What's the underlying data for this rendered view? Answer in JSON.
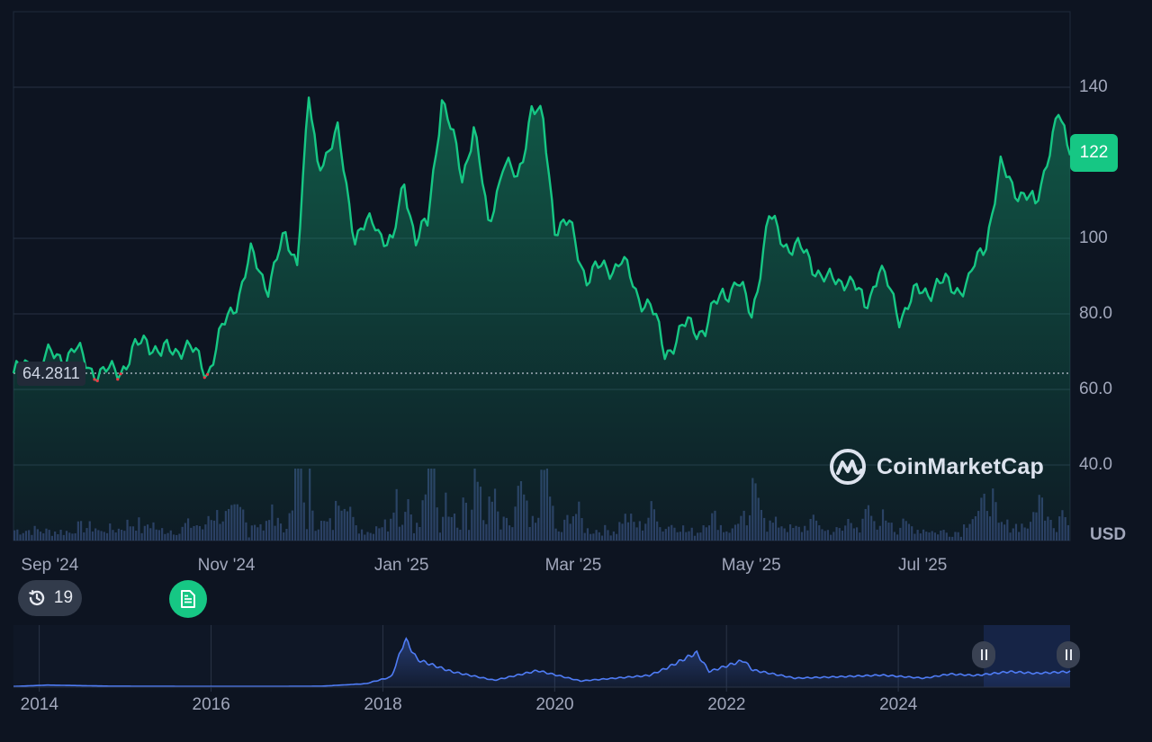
{
  "chart_data": [
    {
      "type": "area",
      "xlabel": "",
      "ylabel": "",
      "currency": "USD",
      "current_price": "122",
      "open_value": "64.2811",
      "ylim": [
        20,
        160
      ],
      "y_ticks": [
        "140",
        "100",
        "80.0",
        "60.0",
        "40.0"
      ],
      "x_ticks": [
        "Sep '24",
        "Nov '24",
        "Jan '25",
        "Mar '25",
        "May '25",
        "Jul '25"
      ],
      "x": [
        "2024-08-30",
        "2024-09-10",
        "2024-09-20",
        "2024-09-30",
        "2024-10-08",
        "2024-10-15",
        "2024-10-20",
        "2024-10-28",
        "2024-11-05",
        "2024-11-10",
        "2024-11-15",
        "2024-11-20",
        "2024-11-26",
        "2024-12-02",
        "2024-12-06",
        "2024-12-10",
        "2024-12-13",
        "2024-12-20",
        "2024-12-26",
        "2025-01-02",
        "2025-01-08",
        "2025-01-12",
        "2025-01-16",
        "2025-01-20",
        "2025-01-25",
        "2025-02-01",
        "2025-02-05",
        "2025-02-10",
        "2025-02-15",
        "2025-02-20",
        "2025-02-25",
        "2025-03-01",
        "2025-03-05",
        "2025-03-10",
        "2025-03-16",
        "2025-03-22",
        "2025-03-28",
        "2025-04-02",
        "2025-04-07",
        "2025-04-12",
        "2025-04-20",
        "2025-04-26",
        "2025-05-02",
        "2025-05-07",
        "2025-05-12",
        "2025-05-18",
        "2025-05-25",
        "2025-06-01",
        "2025-06-07",
        "2025-06-14",
        "2025-06-20",
        "2025-06-25",
        "2025-07-02",
        "2025-07-08",
        "2025-07-15",
        "2025-07-20",
        "2025-07-26",
        "2025-08-01",
        "2025-08-06",
        "2025-08-12",
        "2025-08-18",
        "2025-08-22",
        "2025-08-26",
        "2025-08-30"
      ],
      "y": [
        64.3,
        68,
        70,
        63.5,
        67,
        74,
        69,
        72,
        65,
        75,
        84,
        95,
        88,
        100,
        95,
        136,
        120,
        127,
        101,
        104,
        98,
        115,
        100,
        103,
        138,
        116,
        130,
        103,
        120,
        115,
        135,
        130,
        104,
        103,
        90,
        92,
        94,
        86,
        82,
        70,
        77,
        76,
        86,
        88,
        80,
        105,
        98,
        95,
        88,
        90,
        82,
        92,
        80,
        85,
        88,
        87,
        88,
        100,
        118,
        113,
        108,
        122,
        132,
        122
      ]
    },
    {
      "type": "area",
      "series_name": "",
      "x_ticks": [
        "2014",
        "2016",
        "2018",
        "2020",
        "2022",
        "2024"
      ],
      "x": [
        2013.4,
        2013.8,
        2014.5,
        2015.5,
        2016.5,
        2017.0,
        2017.5,
        2017.8,
        2017.96,
        2018.1,
        2018.5,
        2019.0,
        2019.5,
        2020.0,
        2020.3,
        2020.8,
        2021.0,
        2021.35,
        2021.5,
        2021.9,
        2022.0,
        2022.5,
        2023.0,
        2023.5,
        2024.0,
        2024.3,
        2024.6,
        2025.0,
        2025.3,
        2025.7
      ],
      "y": [
        2,
        6,
        3,
        2,
        2,
        3,
        10,
        30,
        140,
        80,
        45,
        20,
        48,
        18,
        24,
        34,
        55,
        100,
        45,
        78,
        50,
        26,
        30,
        35,
        26,
        38,
        34,
        45,
        40,
        45
      ],
      "ylim": [
        0,
        180
      ]
    }
  ],
  "overlay": {
    "brand_name": "CoinMarketCap",
    "events_count": "19",
    "colors": {
      "up": "#16c784",
      "down": "#ea3943",
      "navigator": "#4f7cf5",
      "background": "#0d1421"
    }
  }
}
